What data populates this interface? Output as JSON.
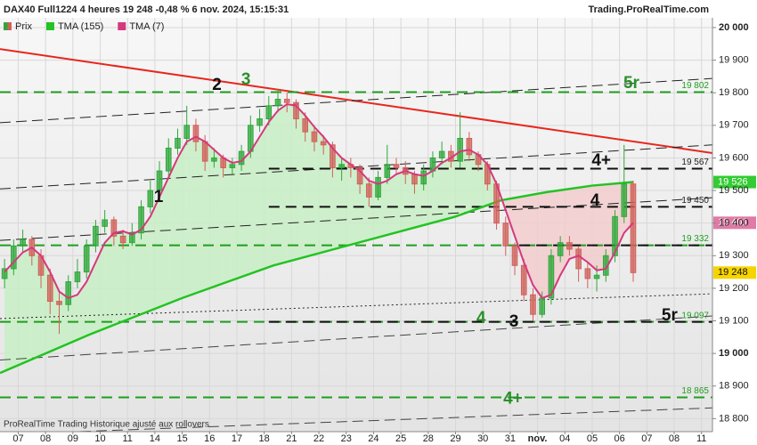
{
  "chart_data": {
    "type": "candlestick",
    "title": "DAX40 Full1224 4 heures 19 248 -0,48 % 6 nov. 2024, 15:15:31",
    "source": "Trading.ProRealTime.com",
    "footer": "ProRealTime Trading  Historique ajusté aux rollovers",
    "xlim": [
      -2,
      76.2
    ],
    "ylim": [
      18760,
      20030
    ],
    "xticks": [
      {
        "value": 0,
        "label": "07"
      },
      {
        "value": 3,
        "label": "08"
      },
      {
        "value": 6,
        "label": "09"
      },
      {
        "value": 9,
        "label": "10"
      },
      {
        "value": 12,
        "label": "11"
      },
      {
        "value": 15,
        "label": "14"
      },
      {
        "value": 18,
        "label": "15"
      },
      {
        "value": 21,
        "label": "16"
      },
      {
        "value": 24,
        "label": "17"
      },
      {
        "value": 27,
        "label": "18"
      },
      {
        "value": 30,
        "label": "21"
      },
      {
        "value": 33,
        "label": "22"
      },
      {
        "value": 36,
        "label": "23"
      },
      {
        "value": 39,
        "label": "24"
      },
      {
        "value": 42,
        "label": "25"
      },
      {
        "value": 45,
        "label": "28"
      },
      {
        "value": 48,
        "label": "29"
      },
      {
        "value": 51,
        "label": "30"
      },
      {
        "value": 54,
        "label": "31"
      },
      {
        "value": 57,
        "label": "nov."
      },
      {
        "value": 60,
        "label": "04"
      },
      {
        "value": 63,
        "label": "05"
      },
      {
        "value": 66,
        "label": "06"
      },
      {
        "value": 69,
        "label": "07"
      },
      {
        "value": 72,
        "label": "08"
      },
      {
        "value": 75,
        "label": "11"
      }
    ],
    "yticks": [
      {
        "value": 18800,
        "label": "18 800"
      },
      {
        "value": 18900,
        "label": "18 900"
      },
      {
        "value": 19000,
        "label": "19 000"
      },
      {
        "value": 19100,
        "label": "19 100"
      },
      {
        "value": 19200,
        "label": "19 200"
      },
      {
        "value": 19300,
        "label": "19 300"
      },
      {
        "value": 19400,
        "label": "19 400"
      },
      {
        "value": 19500,
        "label": "19 500"
      },
      {
        "value": 19600,
        "label": "19 600"
      },
      {
        "value": 19700,
        "label": "19 700"
      },
      {
        "value": 19800,
        "label": "19 800"
      },
      {
        "value": 19900,
        "label": "19 900"
      },
      {
        "value": 20000,
        "label": "20 000"
      }
    ],
    "x": [
      -1.5,
      -0.5,
      0.5,
      1.5,
      2.5,
      3.5,
      4.5,
      5.5,
      6.5,
      7.5,
      8.5,
      9.5,
      10.5,
      11.5,
      12.5,
      13.5,
      14.5,
      15.5,
      16.5,
      17.5,
      18.5,
      19.5,
      20.5,
      21.5,
      22.5,
      23.5,
      24.5,
      25.5,
      26.5,
      27.5,
      28.5,
      29.5,
      30.5,
      31.5,
      32.5,
      33.5,
      34.5,
      35.5,
      36.5,
      37.5,
      38.5,
      39.5,
      40.5,
      41.5,
      42.5,
      43.5,
      44.5,
      45.5,
      46.5,
      47.5,
      48.5,
      49.5,
      50.5,
      51.5,
      52.5,
      53.5,
      54.5,
      55.5,
      56.5,
      57.5,
      58.5,
      59.5,
      60.5,
      61.5,
      62.5,
      63.5,
      64.5,
      65.5,
      66.5,
      67.5
    ],
    "series": [
      {
        "name": "Prix",
        "up_color": "#2fa83a",
        "down_color": "#d0605a",
        "ohlc": [
          [
            19230,
            19290,
            19200,
            19260
          ],
          [
            19260,
            19350,
            19240,
            19330
          ],
          [
            19330,
            19380,
            19310,
            19350
          ],
          [
            19350,
            19360,
            19270,
            19300
          ],
          [
            19300,
            19320,
            19200,
            19240
          ],
          [
            19240,
            19260,
            19120,
            19160
          ],
          [
            19160,
            19190,
            19060,
            19150
          ],
          [
            19150,
            19240,
            19130,
            19220
          ],
          [
            19220,
            19290,
            19200,
            19250
          ],
          [
            19250,
            19350,
            19230,
            19330
          ],
          [
            19330,
            19410,
            19310,
            19390
          ],
          [
            19390,
            19440,
            19370,
            19410
          ],
          [
            19410,
            19420,
            19330,
            19360
          ],
          [
            19360,
            19380,
            19320,
            19340
          ],
          [
            19340,
            19400,
            19330,
            19370
          ],
          [
            19370,
            19470,
            19350,
            19450
          ],
          [
            19450,
            19530,
            19430,
            19500
          ],
          [
            19500,
            19590,
            19480,
            19560
          ],
          [
            19560,
            19660,
            19540,
            19630
          ],
          [
            19630,
            19690,
            19610,
            19660
          ],
          [
            19660,
            19760,
            19640,
            19700
          ],
          [
            19700,
            19720,
            19620,
            19650
          ],
          [
            19650,
            19670,
            19560,
            19590
          ],
          [
            19590,
            19630,
            19570,
            19600
          ],
          [
            19600,
            19610,
            19540,
            19570
          ],
          [
            19570,
            19600,
            19550,
            19580
          ],
          [
            19580,
            19640,
            19560,
            19620
          ],
          [
            19620,
            19730,
            19600,
            19700
          ],
          [
            19700,
            19750,
            19680,
            19720
          ],
          [
            19720,
            19790,
            19700,
            19760
          ],
          [
            19760,
            19810,
            19740,
            19780
          ],
          [
            19780,
            19800,
            19740,
            19770
          ],
          [
            19770,
            19780,
            19690,
            19720
          ],
          [
            19720,
            19740,
            19650,
            19680
          ],
          [
            19680,
            19700,
            19620,
            19650
          ],
          [
            19650,
            19670,
            19610,
            19640
          ],
          [
            19640,
            19650,
            19540,
            19570
          ],
          [
            19570,
            19600,
            19530,
            19580
          ],
          [
            19580,
            19600,
            19540,
            19570
          ],
          [
            19570,
            19580,
            19490,
            19520
          ],
          [
            19520,
            19540,
            19450,
            19480
          ],
          [
            19480,
            19560,
            19470,
            19540
          ],
          [
            19540,
            19640,
            19520,
            19580
          ],
          [
            19580,
            19600,
            19550,
            19570
          ],
          [
            19570,
            19590,
            19520,
            19550
          ],
          [
            19550,
            19560,
            19490,
            19520
          ],
          [
            19520,
            19580,
            19500,
            19560
          ],
          [
            19560,
            19620,
            19540,
            19600
          ],
          [
            19600,
            19650,
            19580,
            19620
          ],
          [
            19620,
            19640,
            19570,
            19590
          ],
          [
            19590,
            19740,
            19570,
            19660
          ],
          [
            19660,
            19680,
            19590,
            19610
          ],
          [
            19610,
            19620,
            19560,
            19580
          ],
          [
            19580,
            19590,
            19500,
            19520
          ],
          [
            19520,
            19530,
            19380,
            19400
          ],
          [
            19400,
            19420,
            19300,
            19330
          ],
          [
            19330,
            19340,
            19240,
            19270
          ],
          [
            19270,
            19290,
            19160,
            19180
          ],
          [
            19180,
            19200,
            19100,
            19120
          ],
          [
            19120,
            19190,
            19110,
            19170
          ],
          [
            19170,
            19320,
            19150,
            19300
          ],
          [
            19300,
            19360,
            19280,
            19340
          ],
          [
            19340,
            19360,
            19300,
            19320
          ],
          [
            19320,
            19330,
            19220,
            19260
          ],
          [
            19260,
            19280,
            19200,
            19230
          ],
          [
            19230,
            19270,
            19190,
            19240
          ],
          [
            19240,
            19320,
            19220,
            19300
          ],
          [
            19300,
            19440,
            19280,
            19420
          ],
          [
            19420,
            19640,
            19400,
            19520
          ],
          [
            19520,
            19530,
            19220,
            19248
          ]
        ]
      },
      {
        "name": "TMA (155)",
        "color": "#22c322",
        "x": [
          -2,
          8,
          18,
          28,
          38,
          48,
          53,
          58,
          63,
          67.5
        ],
        "values": [
          18940,
          19060,
          19170,
          19270,
          19345,
          19420,
          19470,
          19495,
          19515,
          19526
        ]
      },
      {
        "name": "TMA (7)",
        "color": "#d6387e",
        "values": [
          19250,
          19280,
          19310,
          19325,
          19300,
          19250,
          19190,
          19170,
          19180,
          19220,
          19280,
          19340,
          19370,
          19375,
          19365,
          19380,
          19420,
          19480,
          19540,
          19600,
          19650,
          19665,
          19650,
          19625,
          19600,
          19585,
          19590,
          19620,
          19665,
          19710,
          19745,
          19765,
          19760,
          19730,
          19695,
          19665,
          19630,
          19600,
          19580,
          19560,
          19530,
          19520,
          19530,
          19550,
          19560,
          19550,
          19545,
          19560,
          19585,
          19600,
          19620,
          19625,
          19610,
          19580,
          19520,
          19440,
          19360,
          19280,
          19210,
          19170,
          19180,
          19240,
          19290,
          19300,
          19280,
          19255,
          19260,
          19310,
          19370,
          19401
        ]
      }
    ],
    "fill_colors": {
      "above": "#c8efc4",
      "below": "#f2cccc"
    },
    "trendlines": [
      {
        "x": [
          -2,
          76.2
        ],
        "y": [
          19934,
          19615
        ],
        "color": "#e8261e",
        "style": "solid"
      },
      {
        "x": [
          -2,
          76.2
        ],
        "y": [
          19708,
          19844
        ],
        "color": "#222",
        "style": "dashed"
      },
      {
        "x": [
          -2,
          76.2
        ],
        "y": [
          19505,
          19640
        ],
        "color": "#222",
        "style": "dashed"
      },
      {
        "x": [
          -2,
          76.2
        ],
        "y": [
          19347,
          19478
        ],
        "color": "#222",
        "style": "dashed"
      },
      {
        "x": [
          -2,
          76.2
        ],
        "y": [
          19107,
          19183
        ],
        "color": "#222",
        "style": "dotted"
      },
      {
        "x": [
          -2,
          76.2
        ],
        "y": [
          18980,
          19115
        ],
        "color": "#444",
        "style": "dashed"
      },
      {
        "x": [
          -2,
          76.2
        ],
        "y": [
          18751,
          18833
        ],
        "color": "#444",
        "style": "dashed"
      }
    ],
    "levels": [
      {
        "value": 19802,
        "label": "19 802",
        "color": "#1f9e1f",
        "from": -2
      },
      {
        "value": 19567,
        "label": "19 567",
        "color": "#111",
        "from": 27.5
      },
      {
        "value": 19450,
        "label": "19 450",
        "color": "#111",
        "from": 27.5
      },
      {
        "value": 19332,
        "label": "19 332",
        "color": "#1f9e1f",
        "from": -2
      },
      {
        "value": 19332,
        "color": "#111",
        "from": 55
      },
      {
        "value": 19097,
        "label": "19 097",
        "color": "#1f9e1f",
        "from": -2
      },
      {
        "value": 19097,
        "color": "#111",
        "from": 27.5
      },
      {
        "value": 18865,
        "label": "18 865",
        "color": "#1f9e1f",
        "from": -2
      }
    ],
    "annotations": [
      {
        "text": "1",
        "x": 15.4,
        "y": 19478,
        "color": "#111"
      },
      {
        "text": "2",
        "x": 21.8,
        "y": 19822,
        "color": "#111"
      },
      {
        "text": "3",
        "x": 25,
        "y": 19839,
        "color": "#2a8f2a"
      },
      {
        "text": "4",
        "x": 63.3,
        "y": 19467,
        "color": "#111"
      },
      {
        "text": "4+",
        "x": 64,
        "y": 19590,
        "color": "#111"
      },
      {
        "text": "5r",
        "x": 67.3,
        "y": 19828,
        "color": "#2a8f2a"
      },
      {
        "text": "4",
        "x": 50.8,
        "y": 19107,
        "color": "#2a8f2a"
      },
      {
        "text": "3",
        "x": 54.4,
        "y": 19096,
        "color": "#111"
      },
      {
        "text": "5r",
        "x": 71.5,
        "y": 19115,
        "color": "#111"
      },
      {
        "text": "4+",
        "x": 54.3,
        "y": 18860,
        "color": "#2a8f2a"
      }
    ],
    "price_markers": [
      {
        "value": 19526,
        "label": "19 526",
        "color": "#33cc33",
        "text_color": "#fff"
      },
      {
        "value": 19401,
        "label": "19 401",
        "color": "#e07aa6",
        "text_color": "#fff"
      },
      {
        "value": 19248,
        "label": "19 248",
        "color": "#f5d400",
        "text_color": "#111"
      }
    ]
  }
}
